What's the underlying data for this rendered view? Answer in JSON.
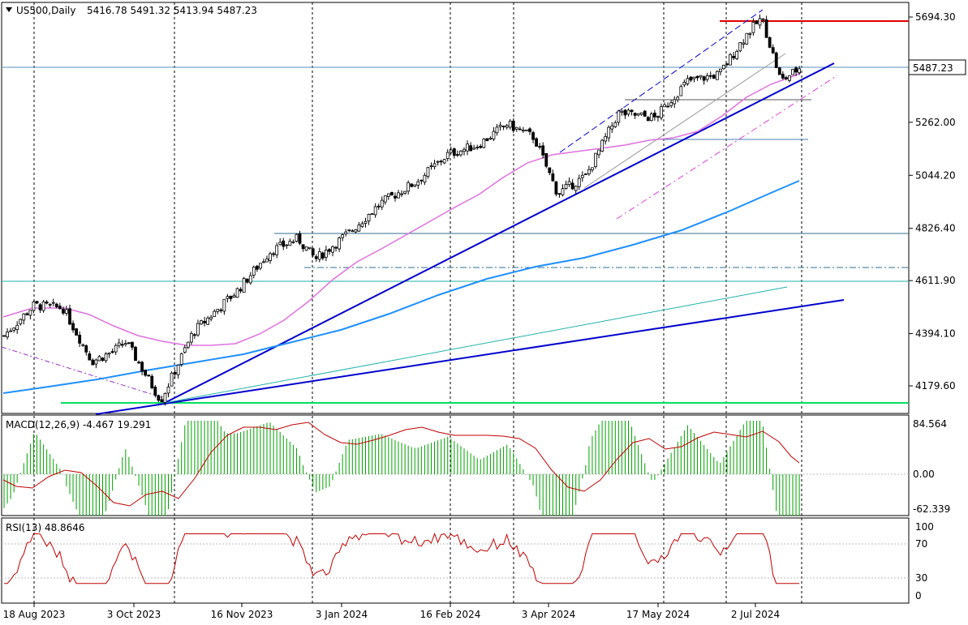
{
  "header": {
    "symbol": "US500,Daily",
    "ohlc": "5416.78 5491.32 5413.94 5487.23"
  },
  "price_axis": {
    "ticks": [
      "5694.30",
      "5262.00",
      "5044.20",
      "4826.40",
      "4611.90",
      "4394.10",
      "4179.60"
    ],
    "current_price": "5487.23"
  },
  "time_axis": {
    "labels": [
      "18 Aug 2023",
      "3 Oct 2023",
      "16 Nov 2023",
      "3 Jan 2024",
      "16 Feb 2024",
      "3 Apr 2024",
      "17 May 2024",
      "2 Jul 2024"
    ]
  },
  "macd": {
    "label": "MACD(12,26,9) -4.467 19.291",
    "ticks": [
      "84.564",
      "0.00",
      "-62.339"
    ]
  },
  "rsi": {
    "label": "RSI(13) 48.8646",
    "ticks": [
      "100",
      "70",
      "30",
      "0"
    ]
  },
  "colors": {
    "ma_fast": "#e070e0",
    "ma_slow": "#1e90ff",
    "trendline": "#0000cd",
    "resistance": "#e00000",
    "support_green": "#00e060",
    "macd_hist": "#00a000",
    "macd_signal": "#c00000",
    "rsi_line": "#c00000",
    "grid": "#000000"
  },
  "chart_data": {
    "type": "candlestick",
    "symbol": "US500",
    "timeframe": "Daily",
    "last_ohlc": {
      "open": 5416.78,
      "high": 5491.32,
      "low": 5413.94,
      "close": 5487.23
    },
    "approx_close_path": [
      {
        "date": "2023-08-08",
        "close": 4490
      },
      {
        "date": "2023-08-18",
        "close": 4380
      },
      {
        "date": "2023-09-01",
        "close": 4510
      },
      {
        "date": "2023-09-14",
        "close": 4500
      },
      {
        "date": "2023-09-27",
        "close": 4280
      },
      {
        "date": "2023-10-06",
        "close": 4320
      },
      {
        "date": "2023-10-12",
        "close": 4360
      },
      {
        "date": "2023-10-27",
        "close": 4120
      },
      {
        "date": "2023-11-10",
        "close": 4400
      },
      {
        "date": "2023-11-30",
        "close": 4570
      },
      {
        "date": "2023-12-15",
        "close": 4730
      },
      {
        "date": "2023-12-28",
        "close": 4785
      },
      {
        "date": "2024-01-05",
        "close": 4700
      },
      {
        "date": "2024-01-19",
        "close": 4810
      },
      {
        "date": "2024-02-01",
        "close": 4930
      },
      {
        "date": "2024-02-16",
        "close": 5020
      },
      {
        "date": "2024-03-01",
        "close": 5130
      },
      {
        "date": "2024-03-15",
        "close": 5170
      },
      {
        "date": "2024-03-28",
        "close": 5255
      },
      {
        "date": "2024-04-09",
        "close": 5200
      },
      {
        "date": "2024-04-19",
        "close": 4970
      },
      {
        "date": "2024-05-01",
        "close": 5040
      },
      {
        "date": "2024-05-15",
        "close": 5300
      },
      {
        "date": "2024-05-31",
        "close": 5280
      },
      {
        "date": "2024-06-14",
        "close": 5430
      },
      {
        "date": "2024-06-28",
        "close": 5460
      },
      {
        "date": "2024-07-10",
        "close": 5630
      },
      {
        "date": "2024-07-16",
        "close": 5690
      },
      {
        "date": "2024-07-24",
        "close": 5430
      },
      {
        "date": "2024-08-01",
        "close": 5487
      }
    ],
    "y_ticks": [
      5694.3,
      5262.0,
      5044.2,
      4826.4,
      4611.9,
      4394.1,
      4179.6
    ],
    "ylim": [
      4100,
      5790
    ],
    "indicators": [
      "MACD(12,26,9)",
      "RSI(13)"
    ],
    "macd_values": {
      "main": -4.467,
      "signal": 19.291
    },
    "rsi_value": 48.8646
  }
}
